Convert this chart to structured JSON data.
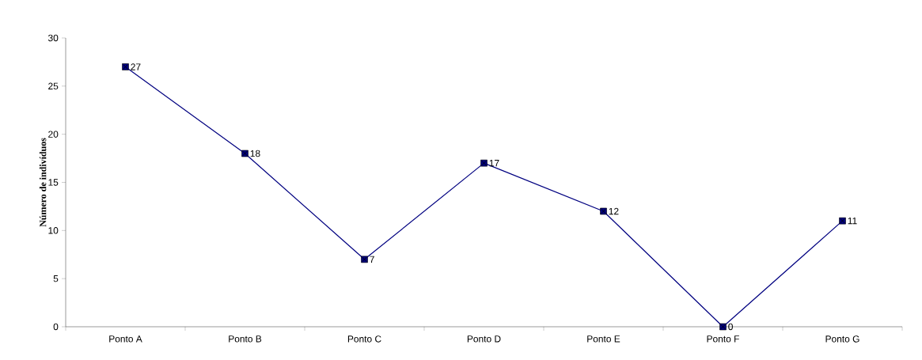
{
  "chart_data": {
    "type": "line",
    "ylabel": "Número de indivíduos",
    "categories": [
      "Ponto A",
      "Ponto B",
      "Ponto C",
      "Ponto D",
      "Ponto E",
      "Ponto F",
      "Ponto G"
    ],
    "series": [
      {
        "color": "#000080",
        "values": [
          27,
          18,
          7,
          17,
          12,
          0,
          11
        ]
      }
    ],
    "ylim": [
      0,
      30
    ],
    "yticks": [
      0,
      5,
      10,
      15,
      20,
      25,
      30
    ],
    "marker": "square",
    "line_style": "solid",
    "data_labels": true,
    "grid": false
  }
}
